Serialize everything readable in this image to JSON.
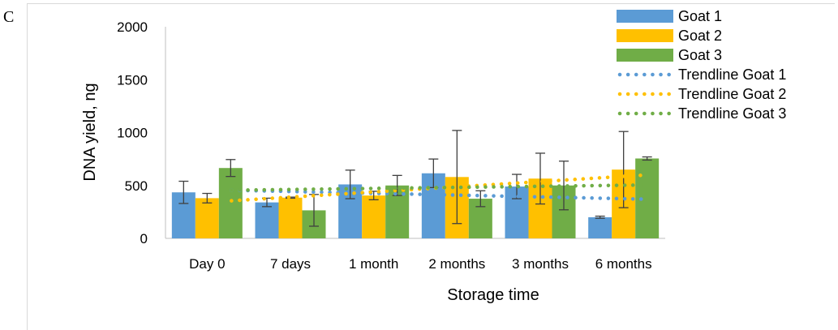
{
  "panel_label": "C",
  "colors": {
    "Goat 1": "#5b9bd5",
    "Goat 2": "#ffc000",
    "Goat 3": "#70ad47",
    "axis": "#bfbfbf",
    "error_bar": "#404040"
  },
  "chart_data": {
    "type": "bar",
    "title": "",
    "xlabel": "Storage time",
    "ylabel": "DNA yield, ng",
    "ylim": [
      0,
      2000
    ],
    "yticks": [
      0,
      500,
      1000,
      1500,
      2000
    ],
    "grid": false,
    "legend_position": "top-right",
    "categories": [
      "Day 0",
      "7 days",
      "1 month",
      "2 months",
      "3 months",
      "6 months"
    ],
    "series": [
      {
        "name": "Goat 1",
        "values": [
          435,
          340,
          510,
          615,
          490,
          200
        ],
        "errors": [
          105,
          40,
          135,
          135,
          115,
          10
        ]
      },
      {
        "name": "Goat 2",
        "values": [
          380,
          385,
          405,
          580,
          565,
          650
        ],
        "errors": [
          45,
          5,
          40,
          440,
          240,
          360
        ]
      },
      {
        "name": "Goat 3",
        "values": [
          665,
          265,
          500,
          375,
          500,
          755
        ],
        "errors": [
          80,
          150,
          95,
          75,
          230,
          15
        ]
      }
    ],
    "trendlines": [
      {
        "name": "Trendline Goat 1",
        "series": "Goat 1",
        "start": 455,
        "end": 370
      },
      {
        "name": "Trendline Goat 2",
        "series": "Goat 2",
        "start": 355,
        "end": 600
      },
      {
        "name": "Trendline Goat 3",
        "series": "Goat 3",
        "start": 455,
        "end": 505
      }
    ]
  }
}
